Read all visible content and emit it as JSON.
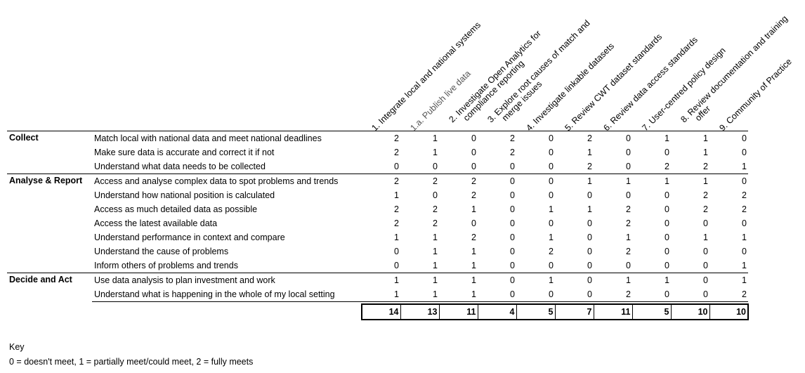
{
  "columns": [
    {
      "label": "1. Integrate local and national systems",
      "line2": "",
      "grey": false
    },
    {
      "label": "1.a. Publish live data",
      "line2": "",
      "grey": true
    },
    {
      "label": "2. Investigate Open Analytics for",
      "line2": "compliance reporting",
      "grey": false
    },
    {
      "label": "3. Explore root causes of match and",
      "line2": "merge issues",
      "grey": false
    },
    {
      "label": "4. Investigate linkable datasets",
      "line2": "",
      "grey": false
    },
    {
      "label": "5. Review CWT dataset standards",
      "line2": "",
      "grey": false
    },
    {
      "label": "6. Review data access standards",
      "line2": "",
      "grey": false
    },
    {
      "label": "7. User-centred policy design",
      "line2": "",
      "grey": false
    },
    {
      "label": "8. Review documentation and training",
      "line2": "offer",
      "grey": false
    },
    {
      "label": "9. Community of Practice",
      "line2": "",
      "grey": false
    }
  ],
  "groups": [
    {
      "name": "Collect",
      "rows": [
        {
          "need": "Match local with national data and meet national deadlines",
          "values": [
            2,
            1,
            0,
            2,
            0,
            2,
            0,
            1,
            1,
            0
          ]
        },
        {
          "need": "Make sure data is accurate and correct it if not",
          "values": [
            2,
            1,
            0,
            2,
            0,
            1,
            0,
            0,
            1,
            0
          ]
        },
        {
          "need": "Understand what data needs to be collected",
          "values": [
            0,
            0,
            0,
            0,
            0,
            2,
            0,
            2,
            2,
            1
          ]
        }
      ]
    },
    {
      "name": "Analyse & Report",
      "rows": [
        {
          "need": "Access and analyse complex data to spot problems and trends",
          "values": [
            2,
            2,
            2,
            0,
            0,
            1,
            1,
            1,
            1,
            0
          ]
        },
        {
          "need": "Understand how national position is calculated",
          "values": [
            1,
            0,
            2,
            0,
            0,
            0,
            0,
            0,
            2,
            2
          ]
        },
        {
          "need": "Access as much detailed data as possible",
          "values": [
            2,
            2,
            1,
            0,
            1,
            1,
            2,
            0,
            2,
            2
          ]
        },
        {
          "need": "Access the latest available data",
          "values": [
            2,
            2,
            0,
            0,
            0,
            0,
            2,
            0,
            0,
            0
          ]
        },
        {
          "need": "Understand performance in context and compare",
          "values": [
            1,
            1,
            2,
            0,
            1,
            0,
            1,
            0,
            1,
            1
          ]
        },
        {
          "need": "Understand the cause of problems",
          "values": [
            0,
            1,
            1,
            0,
            2,
            0,
            2,
            0,
            0,
            0
          ]
        },
        {
          "need": "Inform others of problems and trends",
          "values": [
            0,
            1,
            1,
            0,
            0,
            0,
            0,
            0,
            0,
            1
          ]
        }
      ]
    },
    {
      "name": "Decide and Act",
      "rows": [
        {
          "need": "Use data analysis to plan investment and work",
          "values": [
            1,
            1,
            1,
            0,
            1,
            0,
            1,
            1,
            0,
            1
          ]
        },
        {
          "need": "Understand what is happening in the whole of my local setting",
          "values": [
            1,
            1,
            1,
            0,
            0,
            0,
            2,
            0,
            0,
            2
          ]
        }
      ]
    }
  ],
  "totals": [
    14,
    13,
    11,
    4,
    5,
    7,
    11,
    5,
    10,
    10
  ],
  "key": {
    "title": "Key",
    "text": "0 = doesn't meet, 1 = partially meet/could meet, 2 = fully meets"
  }
}
